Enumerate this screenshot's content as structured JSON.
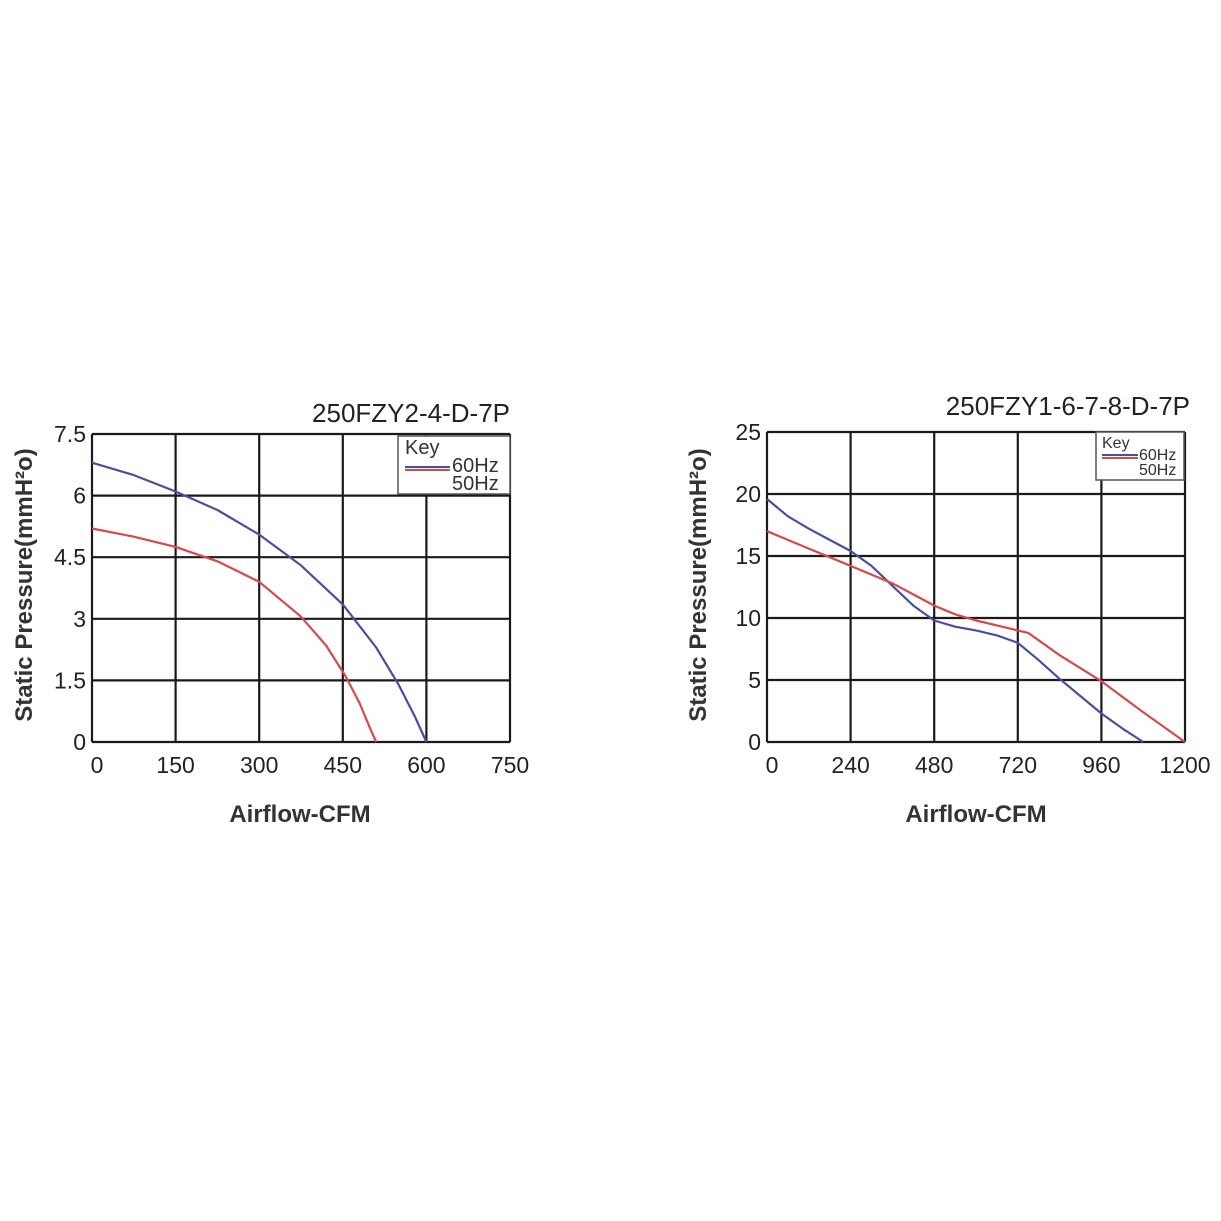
{
  "chart_data": [
    {
      "type": "line",
      "title": "250FZY2-4-D-7P",
      "xlabel": "Airflow-CFM",
      "ylabel": "Static Pressure(mmH²o)",
      "xlim": [
        0,
        750
      ],
      "ylim": [
        0,
        7.5
      ],
      "x_ticks": [
        "0",
        "150",
        "300",
        "450",
        "600",
        "750"
      ],
      "y_ticks": [
        "0",
        "1.5",
        "3",
        "4.5",
        "6",
        "7.5"
      ],
      "grid": true,
      "legend": {
        "title": "Key",
        "placement": "top-right"
      },
      "series": [
        {
          "name": "60Hz",
          "color": "#4a4ea0",
          "points": [
            [
              0,
              6.8
            ],
            [
              75,
              6.5
            ],
            [
              150,
              6.1
            ],
            [
              225,
              5.65
            ],
            [
              300,
              5.05
            ],
            [
              375,
              4.3
            ],
            [
              450,
              3.35
            ],
            [
              510,
              2.3
            ],
            [
              550,
              1.4
            ],
            [
              580,
              0.6
            ],
            [
              600,
              0
            ]
          ]
        },
        {
          "name": "50Hz",
          "color": "#d94848",
          "points": [
            [
              0,
              5.2
            ],
            [
              75,
              5.0
            ],
            [
              150,
              4.75
            ],
            [
              225,
              4.4
            ],
            [
              300,
              3.9
            ],
            [
              375,
              3.05
            ],
            [
              420,
              2.35
            ],
            [
              455,
              1.6
            ],
            [
              480,
              0.95
            ],
            [
              500,
              0.3
            ],
            [
              510,
              0
            ]
          ]
        }
      ]
    },
    {
      "type": "line",
      "title": "250FZY1-6-7-8-D-7P",
      "xlabel": "Airflow-CFM",
      "ylabel": "Static Pressure(mmH²o)",
      "xlim": [
        0,
        1200
      ],
      "ylim": [
        0,
        25
      ],
      "x_ticks": [
        "0",
        "240",
        "480",
        "720",
        "960",
        "1200"
      ],
      "y_ticks": [
        "0",
        "5",
        "10",
        "15",
        "20",
        "25"
      ],
      "grid": true,
      "legend": {
        "title": "Key",
        "placement": "top-right"
      },
      "series": [
        {
          "name": "60Hz",
          "color": "#4a4ea0",
          "points": [
            [
              0,
              19.6
            ],
            [
              60,
              18.2
            ],
            [
              120,
              17.2
            ],
            [
              180,
              16.3
            ],
            [
              240,
              15.4
            ],
            [
              300,
              14.2
            ],
            [
              360,
              12.6
            ],
            [
              420,
              11.0
            ],
            [
              480,
              9.8
            ],
            [
              540,
              9.3
            ],
            [
              600,
              9.0
            ],
            [
              660,
              8.6
            ],
            [
              720,
              8.0
            ],
            [
              780,
              6.6
            ],
            [
              840,
              5.1
            ],
            [
              900,
              3.7
            ],
            [
              960,
              2.3
            ],
            [
              1020,
              1.1
            ],
            [
              1080,
              0
            ]
          ]
        },
        {
          "name": "50Hz",
          "color": "#d94848",
          "points": [
            [
              0,
              17.0
            ],
            [
              60,
              16.3
            ],
            [
              120,
              15.6
            ],
            [
              180,
              14.9
            ],
            [
              240,
              14.2
            ],
            [
              300,
              13.5
            ],
            [
              360,
              12.8
            ],
            [
              420,
              11.9
            ],
            [
              480,
              11.0
            ],
            [
              540,
              10.3
            ],
            [
              600,
              9.8
            ],
            [
              660,
              9.4
            ],
            [
              720,
              9.0
            ],
            [
              750,
              8.8
            ],
            [
              840,
              7.0
            ],
            [
              960,
              4.9
            ],
            [
              1080,
              2.4
            ],
            [
              1200,
              0
            ]
          ]
        }
      ]
    }
  ]
}
